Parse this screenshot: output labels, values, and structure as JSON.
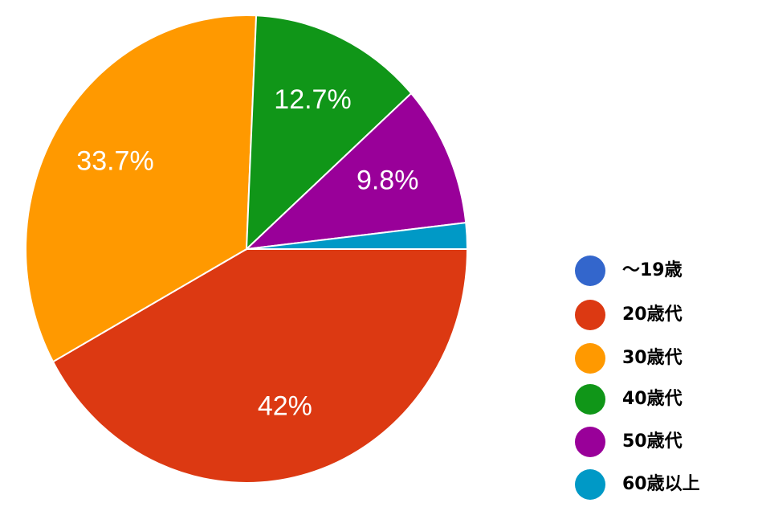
{
  "chart_data": {
    "type": "pie",
    "categories": [
      "〜19歳",
      "20歳代",
      "30歳代",
      "40歳代",
      "50歳代",
      "60歳以上"
    ],
    "values": [
      0,
      42,
      33.7,
      12.7,
      9.8,
      1.8
    ],
    "value_labels": [
      null,
      "42%",
      "33.7%",
      "12.7%",
      "9.8%",
      null
    ],
    "colors": [
      "#3366cc",
      "#dc3912",
      "#ff9900",
      "#109618",
      "#990099",
      "#0099c6"
    ],
    "legend": "right"
  }
}
